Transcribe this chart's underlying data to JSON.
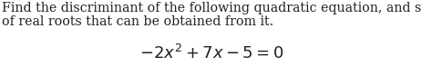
{
  "line1": "Find the discriminant of the following quadratic equation, and state the number",
  "line2": "of real roots that can be obtained from it.",
  "equation": "$-2x^2 + 7x - 5 = 0$",
  "text_color": "#231f20",
  "bg_color": "#ffffff",
  "body_fontsize": 10.2,
  "eq_fontsize": 13.0,
  "fig_width": 4.64,
  "fig_height": 0.73,
  "dpi": 100
}
